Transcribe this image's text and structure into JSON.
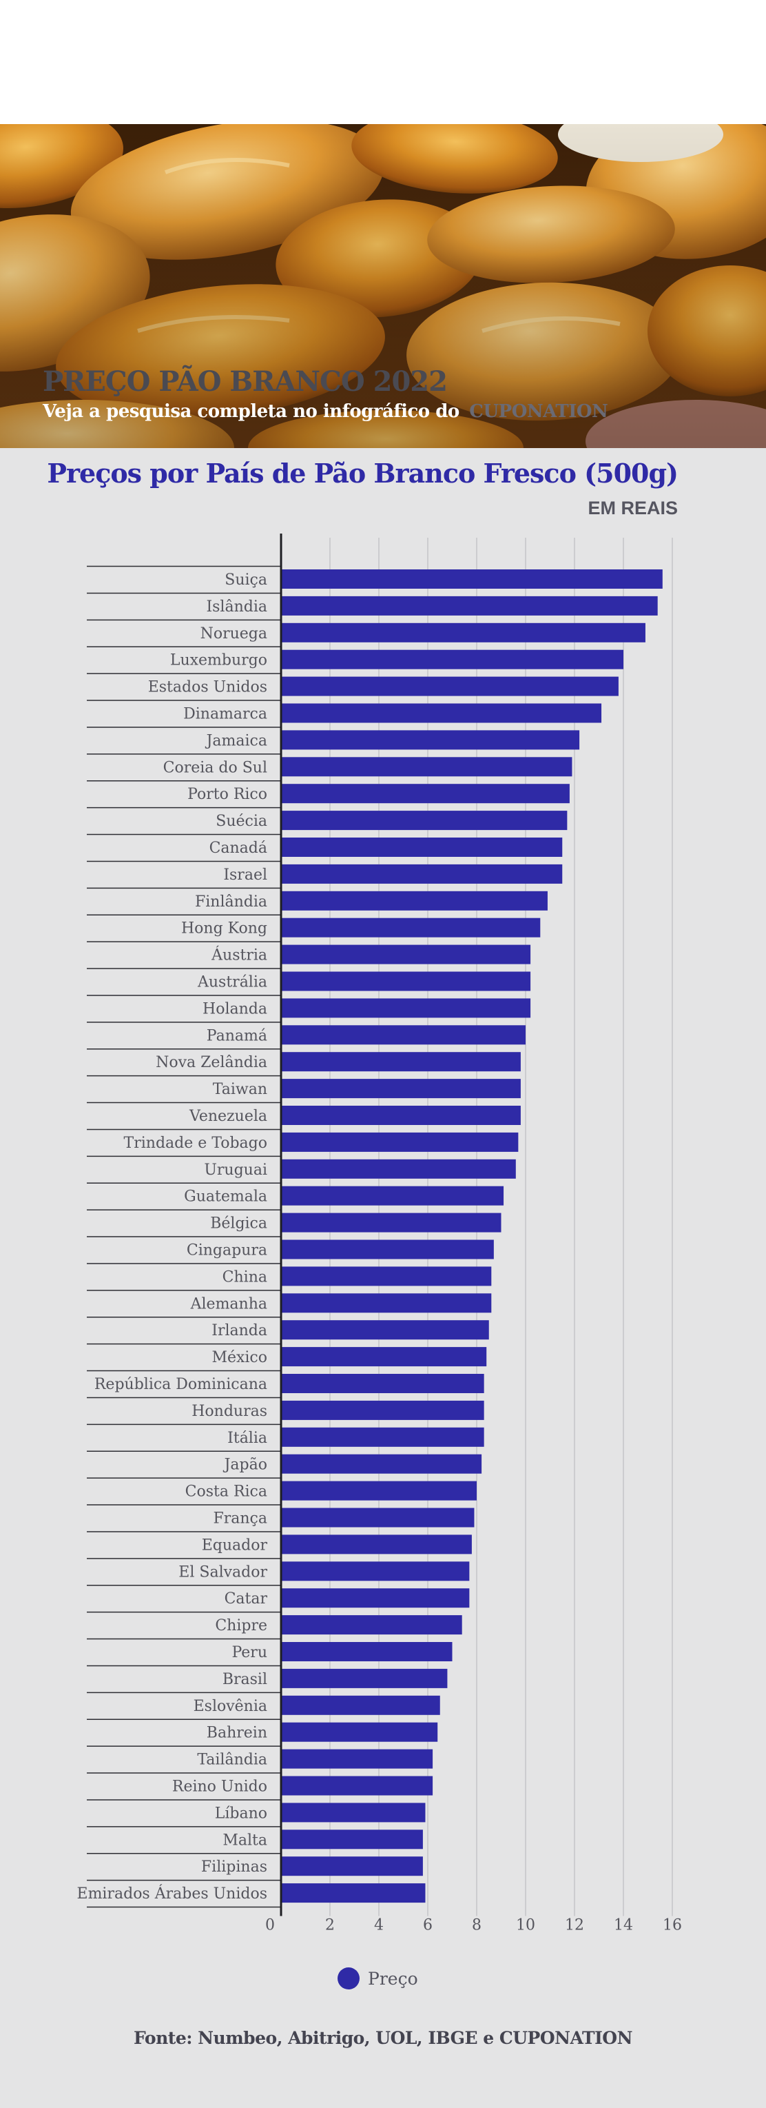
{
  "header": {
    "title": "PREÇO PÃO BRANCO 2022",
    "subtitle_prefix": "Veja a pesquisa completa no infográfico do",
    "brand": "CUPONATION"
  },
  "colors": {
    "bar": "#2f2aa6",
    "title": "#2f2aa6",
    "background": "#e4e4e5"
  },
  "chart_data": {
    "type": "bar",
    "orientation": "horizontal",
    "title": "Preços por País de Pão Branco Fresco (500g)",
    "unit_label": "EM REAIS",
    "categories": [
      "Suiça",
      "Islândia",
      "Noruega",
      "Luxemburgo",
      "Estados Unidos",
      "Dinamarca",
      "Jamaica",
      "Coreia do Sul",
      "Porto Rico",
      "Suécia",
      "Canadá",
      "Israel",
      "Finlândia",
      "Hong Kong",
      "Áustria",
      "Austrália",
      "Holanda",
      "Panamá",
      "Nova Zelândia",
      "Taiwan",
      "Venezuela",
      "Trindade e Tobago",
      "Uruguai",
      "Guatemala",
      "Bélgica",
      "Cingapura",
      "China",
      "Alemanha",
      "Irlanda",
      "México",
      "República Dominicana",
      "Honduras",
      "Itália",
      "Japão",
      "Costa Rica",
      "França",
      "Equador",
      "El Salvador",
      "Catar",
      "Chipre",
      "Peru",
      "Brasil",
      "Eslovênia",
      "Bahrein",
      "Tailândia",
      "Reino Unido",
      "Líbano",
      "Malta",
      "Filipinas",
      "Emirados Árabes Unidos"
    ],
    "series": [
      {
        "name": "Preço",
        "values": [
          15.6,
          15.4,
          14.9,
          14.0,
          13.8,
          13.1,
          12.2,
          11.9,
          11.8,
          11.7,
          11.5,
          11.5,
          10.9,
          10.6,
          10.2,
          10.2,
          10.2,
          10.0,
          9.8,
          9.8,
          9.8,
          9.7,
          9.6,
          9.1,
          9.0,
          8.7,
          8.6,
          8.6,
          8.5,
          8.4,
          8.3,
          8.3,
          8.3,
          8.2,
          8.0,
          7.9,
          7.8,
          7.7,
          7.7,
          7.4,
          7.0,
          6.8,
          6.5,
          6.4,
          6.2,
          6.2,
          5.9,
          5.8,
          5.8,
          5.9
        ]
      }
    ],
    "x_ticks": [
      0,
      2,
      4,
      6,
      8,
      10,
      12,
      14,
      16
    ],
    "xlim": [
      0,
      16
    ],
    "grid": true,
    "legend_position": "bottom"
  },
  "legend": {
    "label": "Preço"
  },
  "source": "Fonte: Numbeo, Abitrigo, UOL, IBGE e CUPONATION"
}
